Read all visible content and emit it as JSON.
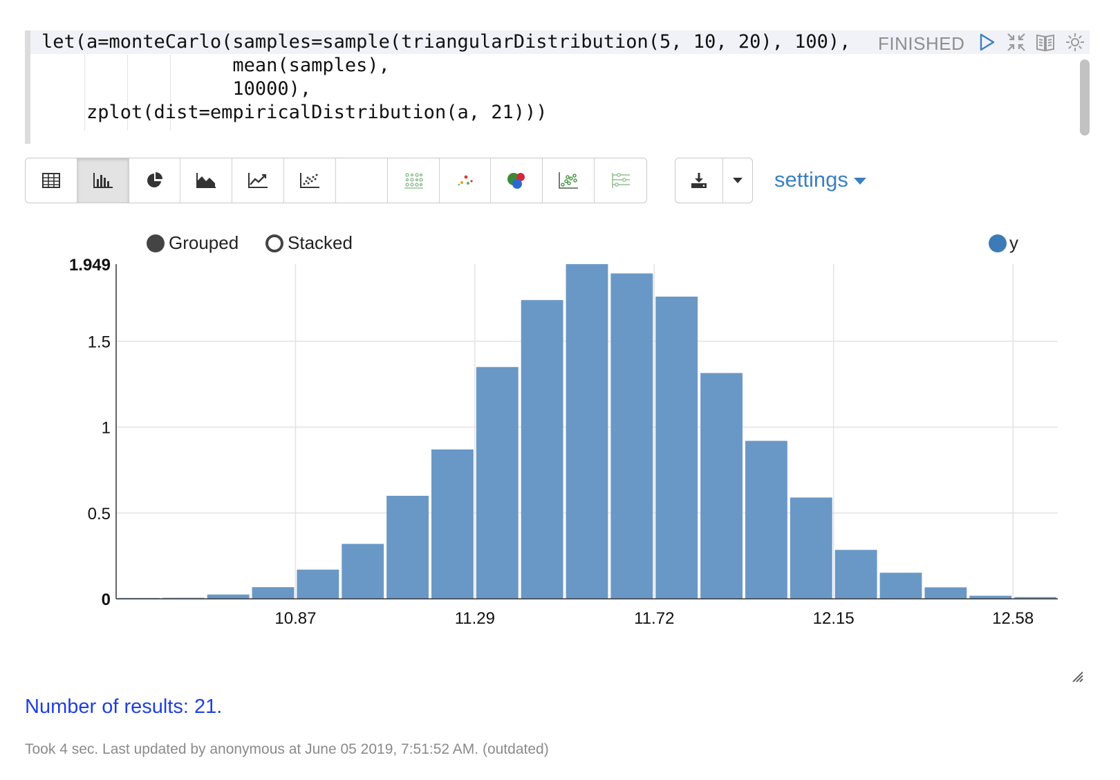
{
  "editor": {
    "lines": [
      "let(a=monteCarlo(samples=sample(triangularDistribution(5, 10, 20), 100),",
      "                 mean(samples),",
      "                 10000),",
      "    zplot(dist=empiricalDistribution(a, 21)))"
    ],
    "status": "FINISHED"
  },
  "toolbar": {
    "viz_buttons": [
      {
        "icon": "table-icon",
        "active": false
      },
      {
        "icon": "bar-chart-icon",
        "active": true
      },
      {
        "icon": "pie-chart-icon",
        "active": false
      },
      {
        "icon": "area-chart-icon",
        "active": false
      },
      {
        "icon": "line-chart-icon",
        "active": false
      },
      {
        "icon": "scatter-chart-icon",
        "active": false
      },
      {
        "icon": "blank",
        "active": false
      },
      {
        "icon": "heatmap-dots-icon",
        "active": false
      },
      {
        "icon": "dot-scatter-icon",
        "active": false
      },
      {
        "icon": "bubble-chart-icon",
        "active": false
      },
      {
        "icon": "scatter-green-icon",
        "active": false
      },
      {
        "icon": "parallel-lines-icon",
        "active": false
      }
    ],
    "settings_label": "settings"
  },
  "chart_controls": {
    "grouped_label": "Grouped",
    "stacked_label": "Stacked",
    "selected": "Grouped"
  },
  "colors": {
    "bar": "#6a98c6",
    "legend_dot": "#3c7ab8",
    "link_blue": "#1f3fe0",
    "accent": "#3a7fc4"
  },
  "chart_data": {
    "type": "bar",
    "legend": [
      "y"
    ],
    "legend_position": "top-right",
    "grid": true,
    "ylim": [
      0,
      1.949
    ],
    "y_ticks": [
      {
        "value": 0,
        "label": "0",
        "bold": true
      },
      {
        "value": 0.5,
        "label": "0.5",
        "bold": false
      },
      {
        "value": 1,
        "label": "1",
        "bold": false
      },
      {
        "value": 1.5,
        "label": "1.5",
        "bold": false
      },
      {
        "value": 1.949,
        "label": "1.949",
        "bold": true
      }
    ],
    "x_tick_labels": [
      {
        "after_bar_index": 3,
        "label": "10.87"
      },
      {
        "after_bar_index": 7,
        "label": "11.29"
      },
      {
        "after_bar_index": 11,
        "label": "11.72"
      },
      {
        "after_bar_index": 15,
        "label": "12.15"
      },
      {
        "after_bar_index": 19,
        "label": "12.58"
      }
    ],
    "series": [
      {
        "name": "y",
        "values": [
          0.005,
          0.006,
          0.025,
          0.068,
          0.17,
          0.32,
          0.6,
          0.87,
          1.35,
          1.74,
          1.949,
          1.895,
          1.76,
          1.315,
          0.92,
          0.59,
          0.285,
          0.152,
          0.067,
          0.018,
          0.01
        ]
      }
    ]
  },
  "results_text": "Number of results: 21.",
  "footer_text": "Took 4 sec. Last updated by anonymous at June 05 2019, 7:51:52 AM. (outdated)"
}
